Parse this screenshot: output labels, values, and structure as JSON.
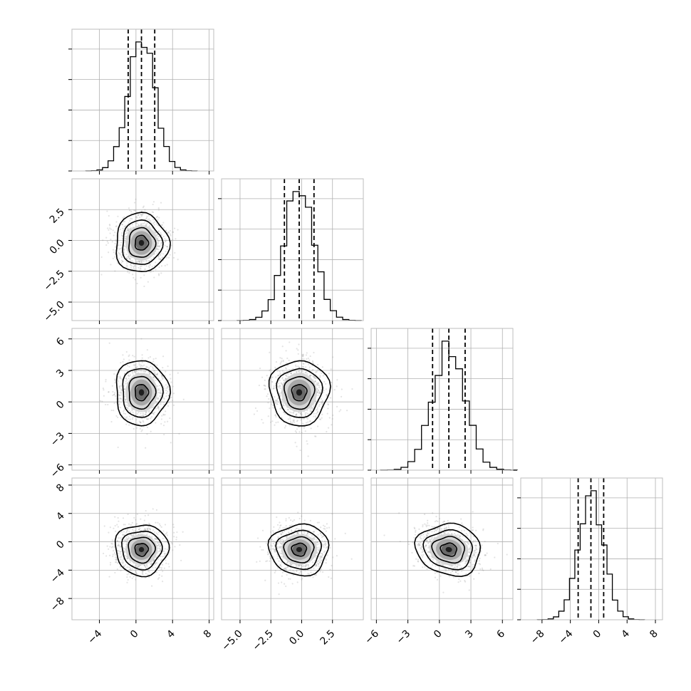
{
  "chart_data": {
    "type": "corner",
    "parameters": [
      {
        "id": "p0",
        "range": [
          -7,
          8.5
        ],
        "ticks": [
          -4,
          0,
          4,
          8
        ],
        "tick_labels": [
          "−4",
          "0",
          "4",
          "8"
        ],
        "mean": 0.6,
        "sd": 1.45,
        "quantiles": [
          -0.85,
          0.6,
          2.05
        ]
      },
      {
        "id": "p1",
        "range": [
          -6.5,
          5.0
        ],
        "ticks": [
          -5.0,
          -2.5,
          0.0,
          2.5
        ],
        "tick_labels": [
          "−5.0",
          "−2.5",
          "0.0",
          "2.5"
        ],
        "mean": -0.2,
        "sd": 1.2,
        "quantiles": [
          -1.4,
          -0.2,
          1.0
        ]
      },
      {
        "id": "p2",
        "range": [
          -6.5,
          7.0
        ],
        "ticks": [
          -6,
          -3,
          0,
          3,
          6
        ],
        "tick_labels": [
          "−6",
          "−3",
          "0",
          "3",
          "6"
        ],
        "mean": 0.9,
        "sd": 1.55,
        "quantiles": [
          -0.65,
          0.9,
          2.45
        ]
      },
      {
        "id": "p3",
        "range": [
          -11,
          9
        ],
        "ticks": [
          -8,
          -4,
          0,
          4,
          8
        ],
        "tick_labels": [
          "−8",
          "−4",
          "0",
          "4",
          "8"
        ],
        "mean": -1.1,
        "sd": 1.8,
        "quantiles": [
          -2.9,
          -1.1,
          0.7
        ]
      }
    ],
    "correlations": [
      [
        1,
        0,
        0,
        0
      ],
      [
        0,
        1,
        0,
        0
      ],
      [
        0,
        0,
        1,
        -0.2
      ],
      [
        0,
        0,
        -0.2,
        1
      ]
    ],
    "histogram_bins": 20,
    "contour_levels_sigma": [
      0.5,
      1.0,
      1.5,
      2.0
    ],
    "scatter_points": 900,
    "grid": true,
    "title": "",
    "xlabel": "",
    "ylabel": ""
  }
}
